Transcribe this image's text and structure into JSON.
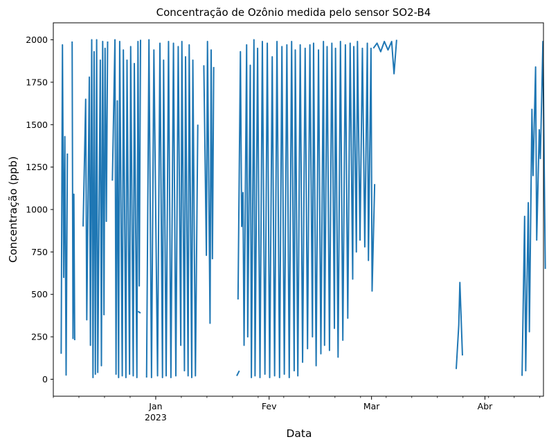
{
  "chart_data": {
    "type": "line",
    "title": "Concentração de Ozônio medida pelo sensor SO2-B4",
    "xlabel": "Data",
    "ylabel": "Concentração (ppb)",
    "x_major_ticks": [
      {
        "date": "2023-01-01",
        "label": "Jan",
        "sublabel": "2023"
      },
      {
        "date": "2023-02-01",
        "label": "Fev",
        "sublabel": ""
      },
      {
        "date": "2023-03-01",
        "label": "Mar",
        "sublabel": ""
      },
      {
        "date": "2023-04-01",
        "label": "Abr",
        "sublabel": ""
      }
    ],
    "xlim": [
      "2022-12-04",
      "2023-04-17"
    ],
    "ylim": [
      -100,
      2100
    ],
    "yticks": [
      0,
      250,
      500,
      750,
      1000,
      1250,
      1500,
      1750,
      2000
    ],
    "grid": false,
    "line_color": "#1f77b4",
    "series": [
      {
        "segments": [
          [
            [
              "2022-12-06",
              150
            ],
            [
              "2022-12-06",
              1970
            ],
            [
              "2022-12-06",
              600
            ],
            [
              "2022-12-07",
              1430
            ],
            [
              "2022-12-07",
              25
            ],
            [
              "2022-12-07",
              1330
            ]
          ],
          [
            [
              "2022-12-09",
              1990
            ],
            [
              "2022-12-09",
              240
            ],
            [
              "2022-12-09",
              1090
            ],
            [
              "2022-12-09",
              230
            ]
          ],
          [
            [
              "2022-12-12",
              900
            ],
            [
              "2022-12-12",
              1650
            ],
            [
              "2022-12-13",
              350
            ],
            [
              "2022-12-13",
              1780
            ],
            [
              "2022-12-14",
              200
            ],
            [
              "2022-12-14",
              2000
            ],
            [
              "2022-12-14",
              10
            ],
            [
              "2022-12-15",
              1930
            ],
            [
              "2022-12-15",
              30
            ],
            [
              "2022-12-15",
              2000
            ],
            [
              "2022-12-16",
              40
            ],
            [
              "2022-12-16",
              1880
            ],
            [
              "2022-12-17",
              80
            ],
            [
              "2022-12-17",
              1990
            ],
            [
              "2022-12-17",
              380
            ],
            [
              "2022-12-18",
              1950
            ],
            [
              "2022-12-18",
              930
            ],
            [
              "2022-12-18",
              1990
            ]
          ],
          [
            [
              "2022-12-20",
              1170
            ],
            [
              "2022-12-20",
              2000
            ],
            [
              "2022-12-21",
              30
            ],
            [
              "2022-12-21",
              1640
            ],
            [
              "2022-12-21",
              10
            ],
            [
              "2022-12-22",
              1990
            ],
            [
              "2022-12-22",
              20
            ],
            [
              "2022-12-23",
              1940
            ],
            [
              "2022-12-23",
              10
            ],
            [
              "2022-12-24",
              1880
            ],
            [
              "2022-12-24",
              30
            ],
            [
              "2022-12-25",
              1960
            ],
            [
              "2022-12-25",
              20
            ],
            [
              "2022-12-26",
              1860
            ],
            [
              "2022-12-26",
              10
            ],
            [
              "2022-12-27",
              1990
            ],
            [
              "2022-12-27",
              550
            ],
            [
              "2022-12-27",
              2000
            ]
          ],
          [
            [
              "2022-12-27",
              400
            ],
            [
              "2022-12-27",
              390
            ]
          ],
          [
            [
              "2022-12-29",
              10
            ],
            [
              "2022-12-30",
              2000
            ],
            [
              "2022-12-30",
              10
            ],
            [
              "2022-12-31",
              1940
            ],
            [
              "2023-01-01",
              20
            ],
            [
              "2023-01-02",
              1980
            ],
            [
              "2023-01-02",
              10
            ],
            [
              "2023-01-03",
              1880
            ],
            [
              "2023-01-03",
              20
            ],
            [
              "2023-01-04",
              1990
            ],
            [
              "2023-01-05",
              10
            ],
            [
              "2023-01-05",
              1980
            ],
            [
              "2023-01-06",
              20
            ],
            [
              "2023-01-07",
              1960
            ],
            [
              "2023-01-07",
              200
            ],
            [
              "2023-01-08",
              1990
            ],
            [
              "2023-01-08",
              50
            ],
            [
              "2023-01-09",
              1900
            ],
            [
              "2023-01-09",
              20
            ],
            [
              "2023-01-10",
              1970
            ],
            [
              "2023-01-10",
              10
            ],
            [
              "2023-01-11",
              1880
            ],
            [
              "2023-01-11",
              20
            ],
            [
              "2023-01-12",
              1500
            ]
          ],
          [
            [
              "2023-01-14",
              1850
            ],
            [
              "2023-01-14",
              730
            ],
            [
              "2023-01-15",
              1990
            ],
            [
              "2023-01-15",
              330
            ],
            [
              "2023-01-16",
              1940
            ],
            [
              "2023-01-16",
              710
            ],
            [
              "2023-01-16",
              1840
            ]
          ],
          [
            [
              "2023-01-23",
              20
            ],
            [
              "2023-01-23",
              50
            ]
          ],
          [
            [
              "2023-01-23",
              470
            ],
            [
              "2023-01-24",
              1930
            ],
            [
              "2023-01-24",
              900
            ],
            [
              "2023-01-24",
              1100
            ],
            [
              "2023-01-25",
              200
            ],
            [
              "2023-01-25",
              1970
            ],
            [
              "2023-01-26",
              250
            ],
            [
              "2023-01-26",
              1850
            ],
            [
              "2023-01-27",
              10
            ],
            [
              "2023-01-27",
              2000
            ],
            [
              "2023-01-28",
              20
            ],
            [
              "2023-01-28",
              1950
            ],
            [
              "2023-01-29",
              10
            ],
            [
              "2023-01-30",
              1990
            ],
            [
              "2023-01-30",
              30
            ],
            [
              "2023-01-31",
              1980
            ],
            [
              "2023-02-01",
              10
            ],
            [
              "2023-02-01",
              1900
            ],
            [
              "2023-02-02",
              20
            ],
            [
              "2023-02-03",
              1990
            ],
            [
              "2023-02-03",
              10
            ],
            [
              "2023-02-04",
              1960
            ],
            [
              "2023-02-05",
              30
            ],
            [
              "2023-02-05",
              1970
            ],
            [
              "2023-02-06",
              10
            ],
            [
              "2023-02-07",
              1990
            ],
            [
              "2023-02-07",
              50
            ],
            [
              "2023-02-08",
              1940
            ],
            [
              "2023-02-08",
              20
            ],
            [
              "2023-02-09",
              1970
            ],
            [
              "2023-02-10",
              100
            ],
            [
              "2023-02-10",
              1950
            ],
            [
              "2023-02-11",
              180
            ],
            [
              "2023-02-12",
              1970
            ],
            [
              "2023-02-12",
              250
            ],
            [
              "2023-02-13",
              1980
            ],
            [
              "2023-02-13",
              80
            ],
            [
              "2023-02-14",
              1940
            ],
            [
              "2023-02-15",
              150
            ],
            [
              "2023-02-15",
              1990
            ],
            [
              "2023-02-16",
              200
            ],
            [
              "2023-02-16",
              1960
            ],
            [
              "2023-02-17",
              170
            ],
            [
              "2023-02-18",
              1980
            ],
            [
              "2023-02-18",
              300
            ],
            [
              "2023-02-19",
              1950
            ],
            [
              "2023-02-19",
              130
            ],
            [
              "2023-02-20",
              1990
            ],
            [
              "2023-02-21",
              230
            ],
            [
              "2023-02-21",
              1970
            ],
            [
              "2023-02-22",
              360
            ],
            [
              "2023-02-23",
              1980
            ],
            [
              "2023-02-23",
              590
            ],
            [
              "2023-02-24",
              1960
            ],
            [
              "2023-02-24",
              750
            ],
            [
              "2023-02-25",
              1990
            ],
            [
              "2023-02-25",
              820
            ],
            [
              "2023-02-26",
              1950
            ],
            [
              "2023-02-27",
              780
            ],
            [
              "2023-02-27",
              1980
            ],
            [
              "2023-02-28",
              700
            ],
            [
              "2023-02-28",
              1950
            ],
            [
              "2023-03-01",
              520
            ],
            [
              "2023-03-01",
              1150
            ]
          ],
          [
            [
              "2023-03-01",
              1950
            ],
            [
              "2023-03-02",
              1980
            ],
            [
              "2023-03-03",
              1930
            ],
            [
              "2023-03-04",
              1990
            ],
            [
              "2023-03-05",
              1940
            ],
            [
              "2023-03-06",
              1990
            ],
            [
              "2023-03-07",
              1800
            ],
            [
              "2023-03-07",
              2000
            ]
          ],
          [
            [
              "2023-03-24",
              60
            ],
            [
              "2023-03-24",
              320
            ],
            [
              "2023-03-25",
              570
            ],
            [
              "2023-03-25",
              140
            ]
          ],
          [
            [
              "2023-04-11",
              20
            ],
            [
              "2023-04-11",
              960
            ],
            [
              "2023-04-12",
              50
            ],
            [
              "2023-04-12",
              1040
            ],
            [
              "2023-04-13",
              280
            ],
            [
              "2023-04-13",
              1590
            ],
            [
              "2023-04-14",
              1200
            ],
            [
              "2023-04-14",
              1840
            ],
            [
              "2023-04-15",
              820
            ],
            [
              "2023-04-15",
              1470
            ],
            [
              "2023-04-16",
              1300
            ],
            [
              "2023-04-16",
              1990
            ],
            [
              "2023-04-17",
              650
            ]
          ]
        ]
      }
    ]
  }
}
